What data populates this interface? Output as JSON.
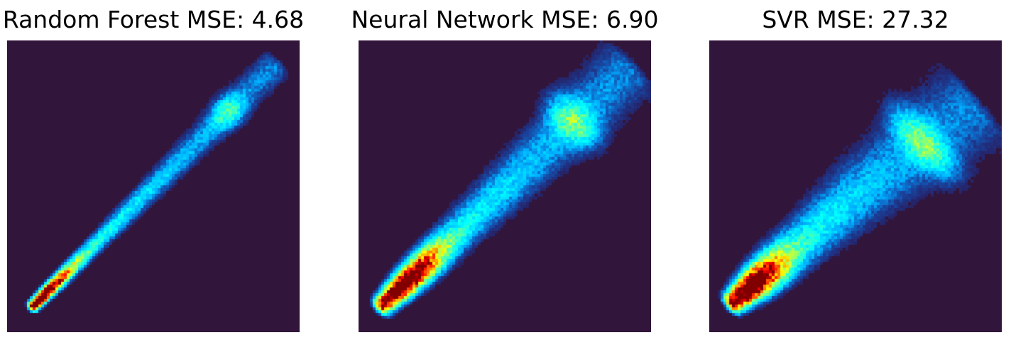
{
  "chart_data": [
    {
      "type": "heatmap",
      "title": "Random Forest MSE: 4.68",
      "model": "Random Forest",
      "mse": 4.68,
      "xlabel": "",
      "ylabel": "",
      "axes_visible": false,
      "grid": false,
      "colormap": "jet",
      "background_color": "#32153a",
      "band": {
        "start": [
          0.09,
          0.09
        ],
        "end": [
          0.91,
          0.91
        ],
        "width": 0.016,
        "knee": 0.5,
        "upper_offset": 0.0,
        "peak_position": 0.02,
        "cluster_position": 0.81,
        "cluster_strength": 0.45,
        "spread": 0.015
      }
    },
    {
      "type": "heatmap",
      "title": "Neural Network MSE: 6.90",
      "model": "Neural Network",
      "mse": 6.9,
      "xlabel": "",
      "ylabel": "",
      "axes_visible": false,
      "grid": false,
      "colormap": "jet",
      "background_color": "#32153a",
      "band": {
        "start": [
          0.08,
          0.09
        ],
        "end": [
          0.92,
          0.9
        ],
        "width": 0.03,
        "knee": 0.45,
        "upper_offset": 0.0,
        "peak_position": 0.1,
        "cluster_position": 0.78,
        "cluster_strength": 0.6,
        "spread": 0.035
      }
    },
    {
      "type": "heatmap",
      "title": "SVR MSE: 27.32",
      "model": "SVR",
      "mse": 27.32,
      "xlabel": "",
      "ylabel": "",
      "axes_visible": false,
      "grid": false,
      "colormap": "jet",
      "background_color": "#32153a",
      "band": {
        "start": [
          0.08,
          0.1
        ],
        "end": [
          0.88,
          0.8
        ],
        "width": 0.034,
        "knee": 0.55,
        "upper_offset": -0.04,
        "peak_position": 0.08,
        "cluster_position": 0.8,
        "cluster_strength": 0.65,
        "spread": 0.07
      }
    }
  ]
}
